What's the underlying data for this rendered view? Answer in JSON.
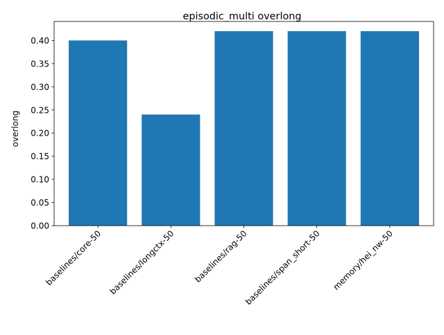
{
  "chart_data": {
    "type": "bar",
    "title": "episodic_multi overlong",
    "xlabel": "",
    "ylabel": "overlong",
    "categories": [
      "baselines/core-50",
      "baselines/longctx-50",
      "baselines/rag-50",
      "baselines/span_short-50",
      "memory/hei_nw-50"
    ],
    "values": [
      0.4,
      0.24,
      0.42,
      0.42,
      0.42
    ],
    "ylim": [
      0,
      0.441
    ],
    "yticks": [
      "0.00",
      "0.05",
      "0.10",
      "0.15",
      "0.20",
      "0.25",
      "0.30",
      "0.35",
      "0.40"
    ],
    "bar_color": "#1f77b4",
    "grid": false,
    "legend": "none"
  }
}
